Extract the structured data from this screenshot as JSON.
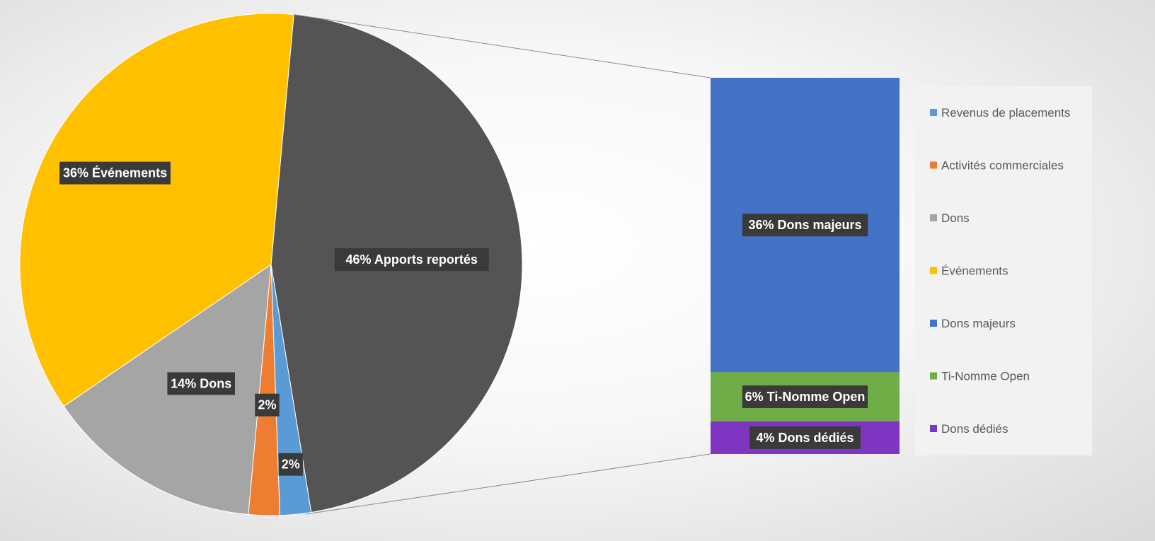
{
  "chart_data": {
    "type": "pie",
    "variant": "bar-of-pie",
    "pie": {
      "slices": [
        {
          "name": "Apports reportés",
          "value": 46,
          "label": "46% Apports reportés",
          "color": "#545454"
        },
        {
          "name": "Revenus de placements",
          "value": 2,
          "label": "2%",
          "color": "#5b9bd5"
        },
        {
          "name": "Activités commerciales",
          "value": 2,
          "label": "2%",
          "color": "#ed7d31"
        },
        {
          "name": "Dons",
          "value": 14,
          "label": "14% Dons",
          "color": "#a5a5a5"
        },
        {
          "name": "Événements",
          "value": 36,
          "label": "36% Événements",
          "color": "#ffc000"
        }
      ]
    },
    "bar": {
      "segments": [
        {
          "name": "Dons majeurs",
          "value": 36,
          "label": "36% Dons majeurs",
          "color": "#4472c4"
        },
        {
          "name": "Ti-Nomme Open",
          "value": 6,
          "label": "6% Ti-Nomme Open",
          "color": "#70ad47"
        },
        {
          "name": "Dons dédiés",
          "value": 4,
          "label": "4% Dons dédiés",
          "color": "#7e36c2"
        }
      ]
    },
    "legend": {
      "position": "right",
      "entries": [
        {
          "name": "Revenus de placements",
          "color": "#5b9bd5"
        },
        {
          "name": "Activités commerciales",
          "color": "#ed7d31"
        },
        {
          "name": "Dons",
          "color": "#a5a5a5"
        },
        {
          "name": "Événements",
          "color": "#ffc000"
        },
        {
          "name": "Dons majeurs",
          "color": "#4472c4"
        },
        {
          "name": "Ti-Nomme Open",
          "color": "#70ad47"
        },
        {
          "name": "Dons dédiés",
          "color": "#7e36c2"
        }
      ]
    }
  }
}
